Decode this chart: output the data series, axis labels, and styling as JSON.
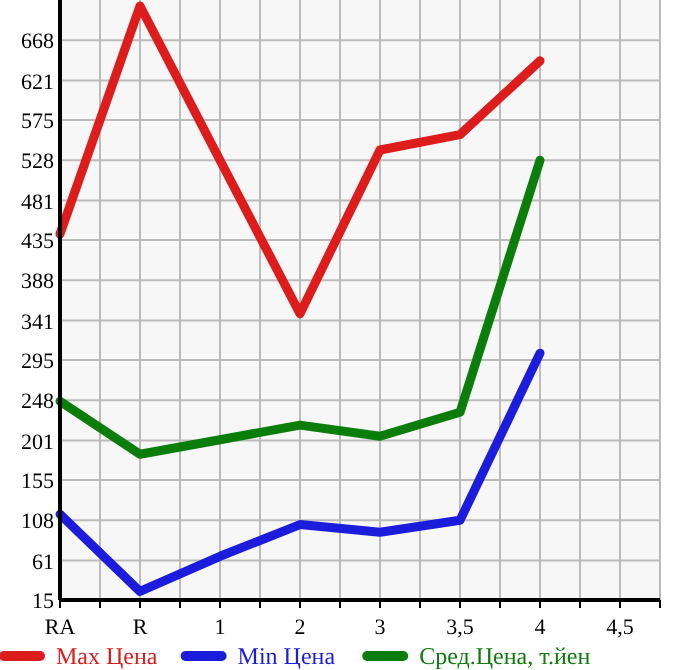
{
  "chart_data": {
    "type": "line",
    "categories": [
      "RA",
      "R",
      "1",
      "2",
      "3",
      "3,5",
      "4",
      "4,5"
    ],
    "ylim": [
      15,
      715
    ],
    "yticks": [
      15,
      61,
      108,
      155,
      201,
      248,
      295,
      341,
      388,
      435,
      481,
      528,
      575,
      621,
      668
    ],
    "grid": true,
    "legend": "bottom",
    "marker": "none",
    "line_style": "solid",
    "series": [
      {
        "name": "Max Цена",
        "color": "#dd1c1c",
        "values": [
          442,
          708,
          528,
          349,
          540,
          558,
          644,
          null
        ]
      },
      {
        "name": "Min Цена",
        "color": "#1c1cdd",
        "values": [
          115,
          25,
          66,
          103,
          94,
          108,
          303,
          null
        ]
      },
      {
        "name": "Сред.Цена, т.йен",
        "color": "#0a7d0a",
        "values": [
          247,
          185,
          202,
          219,
          206,
          234,
          528,
          null
        ]
      }
    ]
  }
}
